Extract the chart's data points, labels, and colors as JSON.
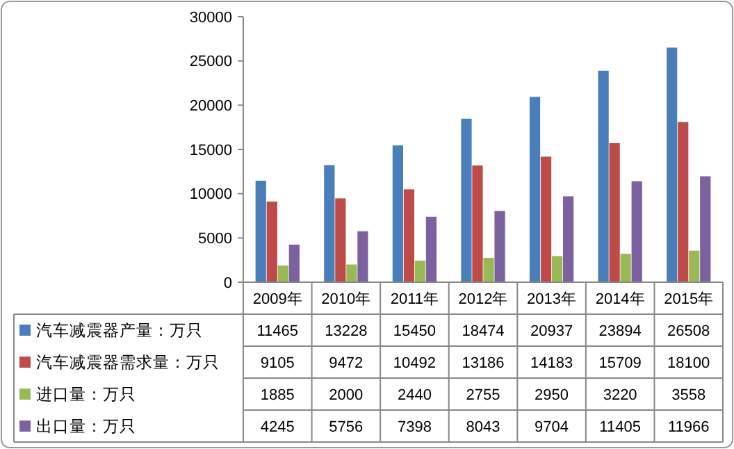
{
  "chart_data": {
    "type": "bar",
    "categories": [
      "2009年",
      "2010年",
      "2011年",
      "2012年",
      "2013年",
      "2014年",
      "2015年"
    ],
    "series": [
      {
        "name": "汽车减震器产量：万只",
        "color": "#4a7ebb",
        "values": [
          11465,
          13228,
          15450,
          18474,
          20937,
          23894,
          26508
        ]
      },
      {
        "name": "汽车减震器需求量：万只",
        "color": "#be4b48",
        "values": [
          9105,
          9472,
          10492,
          13186,
          14183,
          15709,
          18100
        ]
      },
      {
        "name": "进口量：万只",
        "color": "#98b954",
        "values": [
          1885,
          2000,
          2440,
          2755,
          2950,
          3220,
          3558
        ]
      },
      {
        "name": "出口量：万只",
        "color": "#7d60a0",
        "values": [
          4245,
          5756,
          7398,
          8043,
          9704,
          11405,
          11966
        ]
      }
    ],
    "ylim": [
      0,
      30000
    ],
    "yticks": [
      0,
      5000,
      10000,
      15000,
      20000,
      25000,
      30000
    ],
    "data_labels": true,
    "legend": "bottom"
  }
}
